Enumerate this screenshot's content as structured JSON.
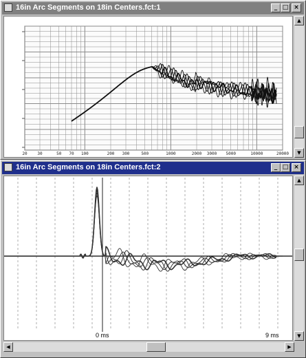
{
  "windows": [
    {
      "title": "16in Arc Segments on 18in Centers.fct:1",
      "controls": [
        "_",
        "□",
        "×"
      ]
    },
    {
      "title": "16in Arc Segments on 18in Centers.fct:2",
      "controls": [
        "_",
        "□",
        "×"
      ]
    }
  ],
  "freq_plot": {
    "x_ticks": [
      "20",
      "30",
      "50",
      "70",
      "100",
      "200",
      "300",
      "500",
      "1000",
      "2000",
      "3000",
      "5000",
      "10000",
      "20000"
    ],
    "colors": {
      "curve": "#111111",
      "grid": "#8a8a8a"
    }
  },
  "impulse_plot": {
    "marker_left": "0 ms",
    "marker_right": "9 ms",
    "colors": {
      "curve": "#333333",
      "baseline": "#000000",
      "grid": "#9a9a9a"
    }
  },
  "icons": [
    "window-icon",
    "minimize-icon",
    "maximize-icon",
    "close-icon",
    "scroll-up-icon",
    "scroll-down-icon",
    "scroll-left-icon",
    "scroll-right-icon"
  ]
}
